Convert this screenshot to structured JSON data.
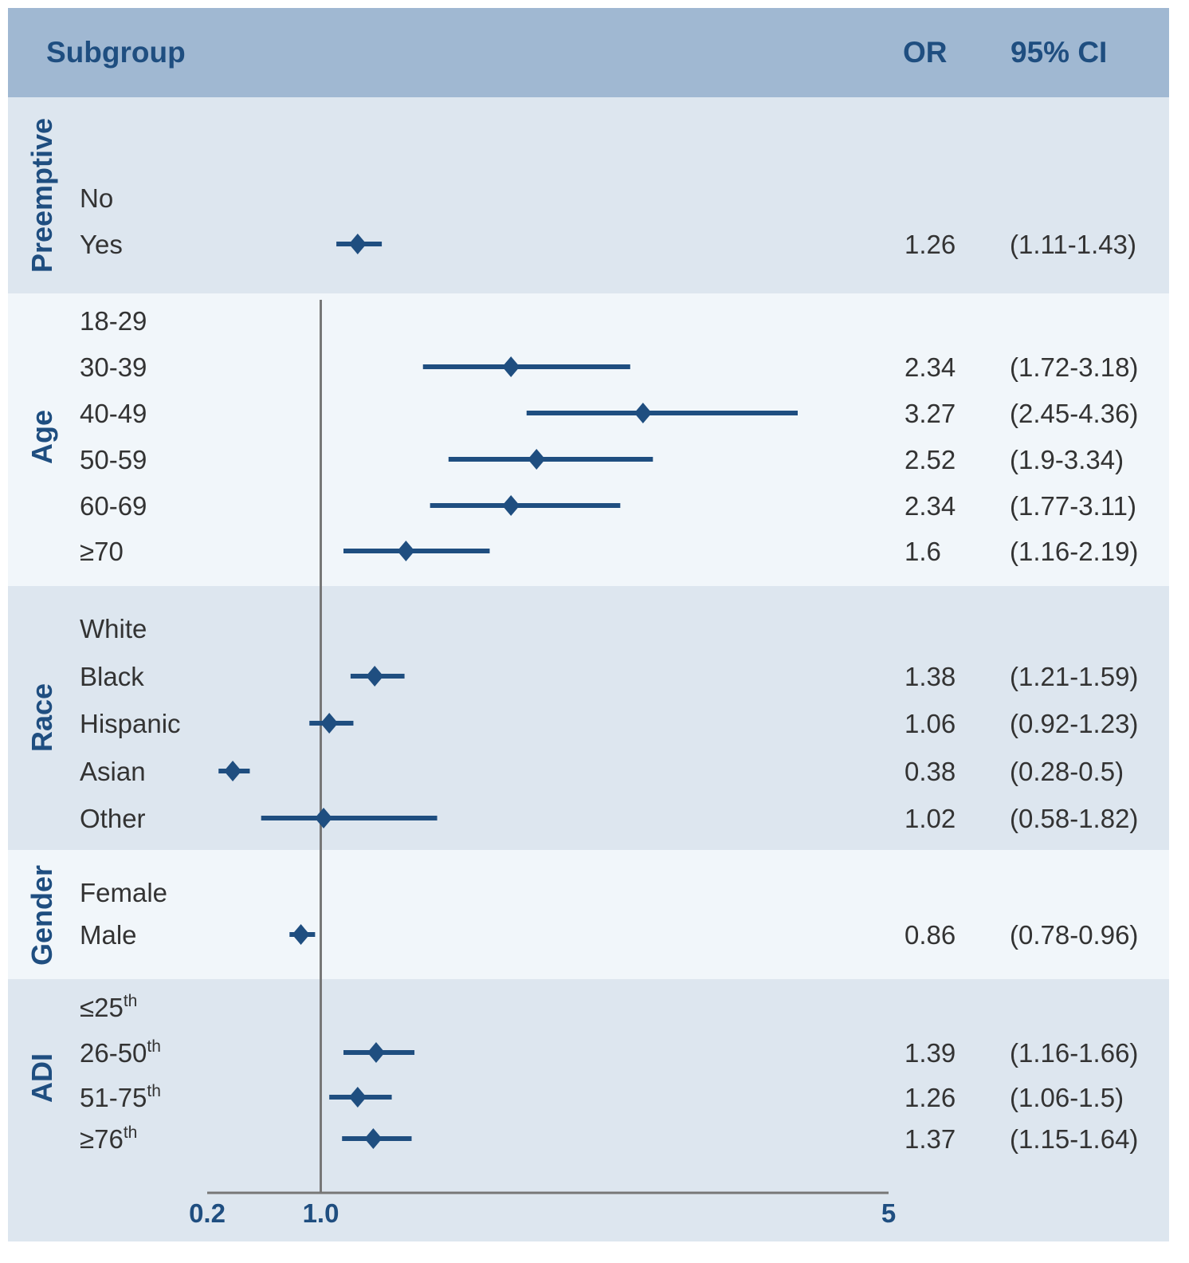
{
  "chart_data": {
    "type": "forest",
    "title": "",
    "headers": {
      "subgroup": "Subgroup",
      "or": "OR",
      "ci": "95% CI"
    },
    "xlim": [
      0.2,
      5
    ],
    "reference_value": 1.0,
    "xticks": [
      {
        "value": 0.2,
        "label": "0.2"
      },
      {
        "value": 1.0,
        "label": "1.0"
      },
      {
        "value": 5,
        "label": "5"
      }
    ],
    "groups": [
      {
        "name": "Preemptive",
        "rows": [
          {
            "label": "No",
            "sup": "",
            "or": null,
            "lo": null,
            "hi": null,
            "or_text": "",
            "ci_text": ""
          },
          {
            "label": "Yes",
            "sup": "",
            "or": 1.26,
            "lo": 1.11,
            "hi": 1.43,
            "or_text": "1.26",
            "ci_text": "(1.11-1.43)"
          }
        ]
      },
      {
        "name": "Age",
        "rows": [
          {
            "label": "18-29",
            "sup": "",
            "or": null,
            "lo": null,
            "hi": null,
            "or_text": "",
            "ci_text": ""
          },
          {
            "label": "30-39",
            "sup": "",
            "or": 2.34,
            "lo": 1.72,
            "hi": 3.18,
            "or_text": "2.34",
            "ci_text": "(1.72-3.18)"
          },
          {
            "label": "40-49",
            "sup": "",
            "or": 3.27,
            "lo": 2.45,
            "hi": 4.36,
            "or_text": "3.27",
            "ci_text": "(2.45-4.36)"
          },
          {
            "label": "50-59",
            "sup": "",
            "or": 2.52,
            "lo": 1.9,
            "hi": 3.34,
            "or_text": "2.52",
            "ci_text": "(1.9-3.34)"
          },
          {
            "label": "60-69",
            "sup": "",
            "or": 2.34,
            "lo": 1.77,
            "hi": 3.11,
            "or_text": "2.34",
            "ci_text": "(1.77-3.11)"
          },
          {
            "label": "≥70",
            "sup": "",
            "or": 1.6,
            "lo": 1.16,
            "hi": 2.19,
            "or_text": "1.6",
            "ci_text": "(1.16-2.19)"
          }
        ]
      },
      {
        "name": "Race",
        "rows": [
          {
            "label": "White",
            "sup": "",
            "or": null,
            "lo": null,
            "hi": null,
            "or_text": "",
            "ci_text": ""
          },
          {
            "label": "Black",
            "sup": "",
            "or": 1.38,
            "lo": 1.21,
            "hi": 1.59,
            "or_text": "1.38",
            "ci_text": "(1.21-1.59)"
          },
          {
            "label": "Hispanic",
            "sup": "",
            "or": 1.06,
            "lo": 0.92,
            "hi": 1.23,
            "or_text": "1.06",
            "ci_text": "(0.92-1.23)"
          },
          {
            "label": "Asian",
            "sup": "",
            "or": 0.38,
            "lo": 0.28,
            "hi": 0.5,
            "or_text": "0.38",
            "ci_text": "(0.28-0.5)"
          },
          {
            "label": "Other",
            "sup": "",
            "or": 1.02,
            "lo": 0.58,
            "hi": 1.82,
            "or_text": "1.02",
            "ci_text": "(0.58-1.82)"
          }
        ]
      },
      {
        "name": "Gender",
        "rows": [
          {
            "label": "Female",
            "sup": "",
            "or": null,
            "lo": null,
            "hi": null,
            "or_text": "",
            "ci_text": ""
          },
          {
            "label": "Male",
            "sup": "",
            "or": 0.86,
            "lo": 0.78,
            "hi": 0.96,
            "or_text": "0.86",
            "ci_text": "(0.78-0.96)"
          }
        ]
      },
      {
        "name": "ADI",
        "rows": [
          {
            "label": "≤25",
            "sup": "th",
            "or": null,
            "lo": null,
            "hi": null,
            "or_text": "",
            "ci_text": ""
          },
          {
            "label": "26-50",
            "sup": "th",
            "or": 1.39,
            "lo": 1.16,
            "hi": 1.66,
            "or_text": "1.39",
            "ci_text": "(1.16-1.66)"
          },
          {
            "label": "51-75",
            "sup": "th",
            "or": 1.26,
            "lo": 1.06,
            "hi": 1.5,
            "or_text": "1.26",
            "ci_text": "(1.06-1.5)"
          },
          {
            "label": "≥76",
            "sup": "th",
            "or": 1.37,
            "lo": 1.15,
            "hi": 1.64,
            "or_text": "1.37",
            "ci_text": "(1.15-1.64)"
          }
        ]
      }
    ],
    "colors": {
      "header_bg": "#a0b8d2",
      "band_dark": "#dde6ef",
      "band_light": "#f1f6fa",
      "marker": "#1f4e80",
      "title_text": "#1f4e80",
      "body_text": "#333333",
      "axis": "#777777"
    }
  }
}
